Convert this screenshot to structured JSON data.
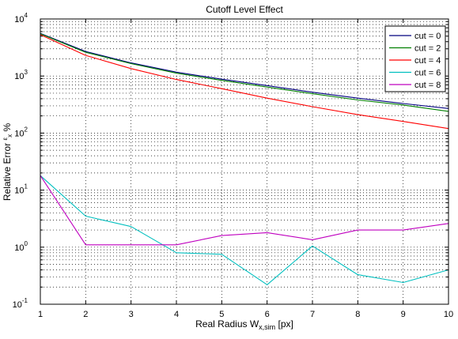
{
  "chart_data": {
    "type": "line",
    "title": "Cutoff Level Effect",
    "xlabel": "Real Radius W",
    "xlabel_sub": "x,sim",
    "xlabel_suffix": " [px]",
    "ylabel": "Relative Error ",
    "ylabel_sub": "x",
    "ylabel_suffix": " %",
    "ylabel_symbol": "ε",
    "x_scale": "linear",
    "y_scale": "log",
    "xlim": [
      1,
      10
    ],
    "ylim": [
      0.1,
      10000
    ],
    "grid": true,
    "legend_position": "top-right",
    "x_ticks": [
      "1",
      "2",
      "3",
      "4",
      "5",
      "6",
      "7",
      "8",
      "9",
      "10"
    ],
    "y_ticks": [
      {
        "base": "10",
        "exp": "-1"
      },
      {
        "base": "10",
        "exp": "0"
      },
      {
        "base": "10",
        "exp": "1"
      },
      {
        "base": "10",
        "exp": "2"
      },
      {
        "base": "10",
        "exp": "3"
      },
      {
        "base": "10",
        "exp": "4"
      }
    ],
    "x": [
      1,
      2,
      3,
      4,
      5,
      6,
      7,
      8,
      9,
      10
    ],
    "series": [
      {
        "name": "cut = 0",
        "color": "#00007f",
        "values": [
          5600,
          2700,
          1700,
          1170,
          880,
          680,
          520,
          410,
          330,
          270
        ]
      },
      {
        "name": "cut = 2",
        "color": "#007f00",
        "values": [
          5500,
          2600,
          1650,
          1120,
          840,
          640,
          490,
          380,
          310,
          240
        ]
      },
      {
        "name": "cut = 4",
        "color": "#ff0000",
        "values": [
          5300,
          2300,
          1350,
          870,
          600,
          410,
          290,
          210,
          160,
          120
        ]
      },
      {
        "name": "cut = 6",
        "color": "#00bfbf",
        "values": [
          18,
          3.5,
          2.3,
          0.8,
          0.75,
          0.22,
          1.05,
          0.33,
          0.24,
          0.4
        ]
      },
      {
        "name": "cut = 8",
        "color": "#bf00bf",
        "values": [
          18,
          1.1,
          1.1,
          1.1,
          1.6,
          1.8,
          1.35,
          2.0,
          2.0,
          2.6
        ]
      }
    ]
  }
}
